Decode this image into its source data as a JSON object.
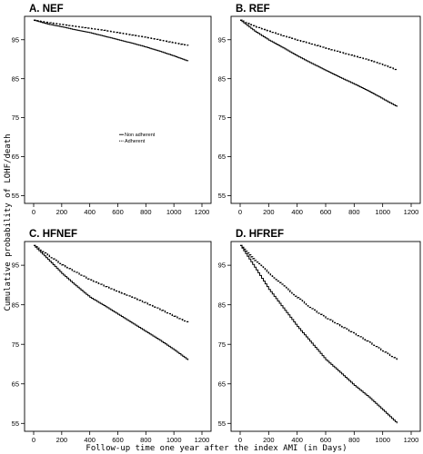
{
  "figure": {
    "ylabel": "Cumulative probability of LOHF/death",
    "xlabel": "Follow-up time one year after the index AMI (in Days)"
  },
  "chart_data": [
    {
      "type": "line",
      "title": "A. NEF",
      "xlim": [
        0,
        1200
      ],
      "ylim": [
        53,
        101
      ],
      "xticks": [
        0,
        200,
        400,
        600,
        800,
        1000,
        1200
      ],
      "yticks": [
        55,
        65,
        75,
        85,
        95
      ],
      "legend": {
        "placement": "center",
        "entries": [
          "Non adherent",
          "Adherent"
        ]
      },
      "series": [
        {
          "name": "Non adherent",
          "style": "solid",
          "x": [
            0,
            100,
            200,
            300,
            400,
            500,
            600,
            700,
            800,
            900,
            1000,
            1100
          ],
          "y": [
            100,
            99.0,
            98.3,
            97.5,
            96.8,
            95.9,
            95.0,
            94.1,
            93.1,
            92.0,
            90.8,
            89.5
          ]
        },
        {
          "name": "Adherent",
          "style": "dashed",
          "x": [
            0,
            100,
            200,
            300,
            400,
            500,
            600,
            700,
            800,
            900,
            1000,
            1100
          ],
          "y": [
            100,
            99.4,
            98.9,
            98.4,
            97.9,
            97.4,
            96.8,
            96.2,
            95.6,
            94.9,
            94.2,
            93.5
          ]
        }
      ]
    },
    {
      "type": "line",
      "title": "B. REF",
      "xlim": [
        0,
        1200
      ],
      "ylim": [
        53,
        101
      ],
      "xticks": [
        0,
        200,
        400,
        600,
        800,
        1000,
        1200
      ],
      "yticks": [
        55,
        65,
        75,
        85,
        95
      ],
      "series": [
        {
          "name": "Non adherent",
          "style": "solid",
          "x": [
            0,
            100,
            200,
            300,
            400,
            500,
            600,
            700,
            800,
            900,
            1000,
            1100
          ],
          "y": [
            100,
            97.2,
            94.9,
            92.9,
            90.8,
            88.9,
            87.1,
            85.3,
            83.6,
            81.8,
            79.8,
            77.8
          ]
        },
        {
          "name": "Adherent",
          "style": "dashed",
          "x": [
            0,
            100,
            200,
            300,
            400,
            500,
            600,
            700,
            800,
            900,
            1000,
            1100
          ],
          "y": [
            100,
            98.4,
            97.2,
            96.0,
            94.9,
            93.9,
            92.8,
            91.8,
            90.8,
            89.8,
            88.6,
            87.2
          ]
        }
      ]
    },
    {
      "type": "line",
      "title": "C. HFNEF",
      "xlim": [
        0,
        1200
      ],
      "ylim": [
        53,
        101
      ],
      "xticks": [
        0,
        200,
        400,
        600,
        800,
        1000,
        1200
      ],
      "yticks": [
        55,
        65,
        75,
        85,
        95
      ],
      "series": [
        {
          "name": "Non adherent",
          "style": "solid",
          "x": [
            0,
            100,
            200,
            300,
            400,
            500,
            600,
            700,
            800,
            900,
            1000,
            1100
          ],
          "y": [
            100,
            96.5,
            92.9,
            89.8,
            86.9,
            84.8,
            82.6,
            80.4,
            78.2,
            76.0,
            73.6,
            71.0
          ]
        },
        {
          "name": "Adherent",
          "style": "dashed",
          "x": [
            0,
            100,
            200,
            300,
            400,
            500,
            600,
            700,
            800,
            900,
            1000,
            1100
          ],
          "y": [
            100,
            97.5,
            95.1,
            93.2,
            91.3,
            89.8,
            88.3,
            86.9,
            85.4,
            83.8,
            82.1,
            80.5
          ]
        }
      ]
    },
    {
      "type": "line",
      "title": "D. HFREF",
      "xlim": [
        0,
        1200
      ],
      "ylim": [
        53,
        101
      ],
      "xticks": [
        0,
        200,
        400,
        600,
        800,
        1000,
        1200
      ],
      "yticks": [
        55,
        65,
        75,
        85,
        95
      ],
      "series": [
        {
          "name": "Non adherent",
          "style": "solid",
          "x": [
            0,
            100,
            200,
            300,
            400,
            500,
            600,
            700,
            800,
            900,
            1000,
            1100
          ],
          "y": [
            100,
            94.5,
            88.9,
            84.2,
            79.5,
            75.3,
            71.1,
            67.9,
            64.6,
            61.7,
            58.4,
            55.0
          ]
        },
        {
          "name": "Adherent",
          "style": "dashed",
          "x": [
            0,
            100,
            200,
            300,
            400,
            500,
            600,
            700,
            800,
            900,
            1000,
            1100
          ],
          "y": [
            100,
            96.2,
            93.0,
            89.8,
            86.8,
            84.0,
            81.7,
            79.7,
            77.7,
            75.6,
            73.3,
            71.1
          ]
        }
      ]
    }
  ]
}
